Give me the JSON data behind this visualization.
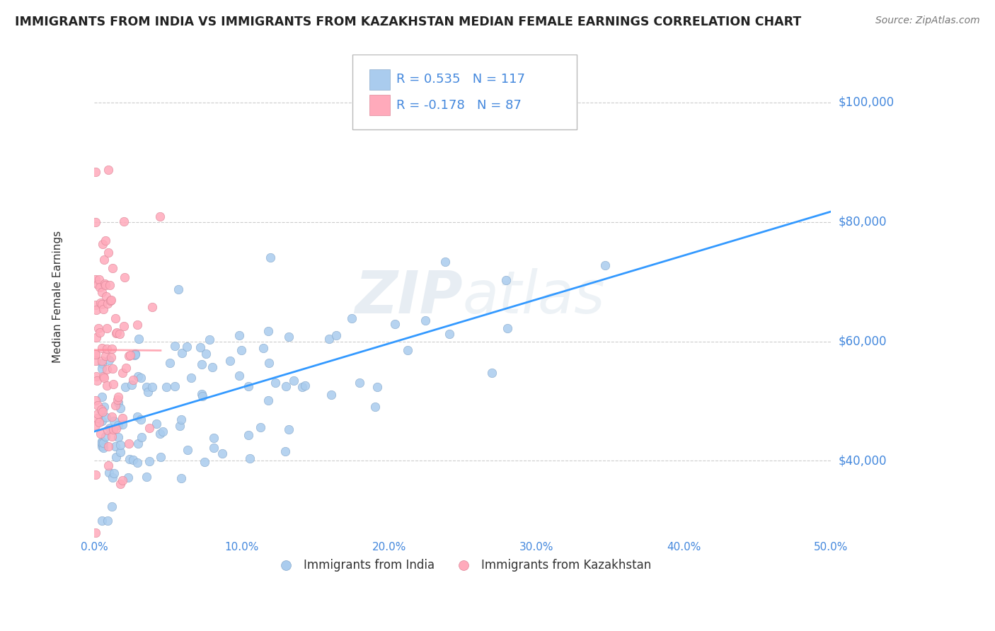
{
  "title": "IMMIGRANTS FROM INDIA VS IMMIGRANTS FROM KAZAKHSTAN MEDIAN FEMALE EARNINGS CORRELATION CHART",
  "source": "Source: ZipAtlas.com",
  "ylabel": "Median Female Earnings",
  "xmin": 0.0,
  "xmax": 0.5,
  "ymin": 27000,
  "ymax": 108000,
  "yticks": [
    40000,
    60000,
    80000,
    100000
  ],
  "ytick_labels": [
    "$40,000",
    "$60,000",
    "$80,000",
    "$100,000"
  ],
  "xticks": [
    0.0,
    0.1,
    0.2,
    0.3,
    0.4,
    0.5
  ],
  "xtick_labels": [
    "0.0%",
    "10.0%",
    "20.0%",
    "30.0%",
    "40.0%",
    "50.0%"
  ],
  "india_color": "#aaccee",
  "india_edge_color": "#88aacc",
  "kazakhstan_color": "#ffaabb",
  "kazakhstan_edge_color": "#dd8899",
  "trend_india_color": "#3399ff",
  "trend_kaz_color": "#ff8899",
  "legend_india_label": "Immigrants from India",
  "legend_kaz_label": "Immigrants from Kazakhstan",
  "R_india": 0.535,
  "N_india": 117,
  "R_kaz": -0.178,
  "N_kaz": 87,
  "watermark": "ZIPAtlas",
  "title_color": "#222222",
  "source_color": "#777777",
  "axis_color": "#4488dd",
  "grid_color": "#cccccc",
  "background_color": "#ffffff"
}
